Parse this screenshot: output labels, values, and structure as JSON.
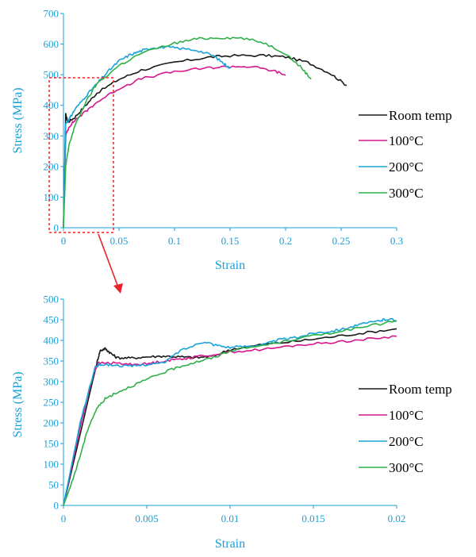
{
  "chart_data": [
    {
      "type": "line",
      "xlabel": "Strain",
      "ylabel": "Stress (MPa)",
      "xlim": [
        0,
        0.3
      ],
      "ylim": [
        0,
        700
      ],
      "xticks": [
        "0",
        "0.05",
        "0.1",
        "0.15",
        "0.2",
        "0.25",
        "0.3"
      ],
      "yticks": [
        "0",
        "100",
        "200",
        "300",
        "400",
        "500",
        "600",
        "700"
      ],
      "legend_position": "right",
      "series": [
        {
          "name": "Room temp",
          "color": "#1a1a1a",
          "points": [
            [
              0,
              0
            ],
            [
              0.002,
              370
            ],
            [
              0.004,
              345
            ],
            [
              0.01,
              360
            ],
            [
              0.02,
              400
            ],
            [
              0.03,
              440
            ],
            [
              0.05,
              485
            ],
            [
              0.07,
              515
            ],
            [
              0.1,
              540
            ],
            [
              0.13,
              557
            ],
            [
              0.15,
              562
            ],
            [
              0.18,
              563
            ],
            [
              0.2,
              558
            ],
            [
              0.22,
              540
            ],
            [
              0.24,
              505
            ],
            [
              0.255,
              465
            ]
          ]
        },
        {
          "name": "100°C",
          "color": "#d6168c",
          "points": [
            [
              0,
              0
            ],
            [
              0.002,
              300
            ],
            [
              0.005,
              330
            ],
            [
              0.01,
              350
            ],
            [
              0.02,
              380
            ],
            [
              0.03,
              410
            ],
            [
              0.05,
              455
            ],
            [
              0.07,
              487
            ],
            [
              0.1,
              510
            ],
            [
              0.13,
              522
            ],
            [
              0.15,
              527
            ],
            [
              0.17,
              526
            ],
            [
              0.19,
              512
            ],
            [
              0.2,
              498
            ]
          ]
        },
        {
          "name": "200°C",
          "color": "#1aa3d9",
          "points": [
            [
              0,
              0
            ],
            [
              0.002,
              340
            ],
            [
              0.006,
              360
            ],
            [
              0.01,
              385
            ],
            [
              0.02,
              430
            ],
            [
              0.03,
              470
            ],
            [
              0.04,
              510
            ],
            [
              0.05,
              545
            ],
            [
              0.06,
              565
            ],
            [
              0.07,
              578
            ],
            [
              0.08,
              588
            ],
            [
              0.09,
              590
            ],
            [
              0.1,
              588
            ],
            [
              0.12,
              580
            ],
            [
              0.135,
              562
            ],
            [
              0.145,
              535
            ],
            [
              0.15,
              520
            ]
          ]
        },
        {
          "name": "300°C",
          "color": "#2fb04a",
          "points": [
            [
              0,
              0
            ],
            [
              0.002,
              200
            ],
            [
              0.005,
              270
            ],
            [
              0.01,
              330
            ],
            [
              0.02,
              410
            ],
            [
              0.03,
              470
            ],
            [
              0.05,
              530
            ],
            [
              0.07,
              570
            ],
            [
              0.1,
              603
            ],
            [
              0.12,
              617
            ],
            [
              0.14,
              621
            ],
            [
              0.16,
              620
            ],
            [
              0.18,
              605
            ],
            [
              0.2,
              570
            ],
            [
              0.215,
              520
            ],
            [
              0.223,
              485
            ]
          ]
        }
      ]
    },
    {
      "type": "line",
      "xlabel": "Strain",
      "ylabel": "Stress (MPa)",
      "xlim": [
        0,
        0.02
      ],
      "ylim": [
        0,
        500
      ],
      "xticks": [
        "0",
        "0.005",
        "0.01",
        "0.015",
        "0.02"
      ],
      "yticks": [
        "0",
        "50",
        "100",
        "150",
        "200",
        "250",
        "300",
        "350",
        "400",
        "450",
        "500"
      ],
      "legend_position": "right",
      "series": [
        {
          "name": "Room temp",
          "color": "#1a1a1a",
          "points": [
            [
              0,
              0
            ],
            [
              0.002,
              345
            ],
            [
              0.0022,
              375
            ],
            [
              0.0025,
              380
            ],
            [
              0.0028,
              370
            ],
            [
              0.0032,
              358
            ],
            [
              0.004,
              357
            ],
            [
              0.005,
              360
            ],
            [
              0.006,
              362
            ],
            [
              0.007,
              360
            ],
            [
              0.008,
              358
            ],
            [
              0.009,
              362
            ],
            [
              0.01,
              378
            ],
            [
              0.012,
              390
            ],
            [
              0.014,
              398
            ],
            [
              0.016,
              408
            ],
            [
              0.018,
              418
            ],
            [
              0.02,
              428
            ]
          ]
        },
        {
          "name": "100°C",
          "color": "#d6168c",
          "points": [
            [
              0,
              0
            ],
            [
              0.001,
              190
            ],
            [
              0.0018,
              320
            ],
            [
              0.0021,
              345
            ],
            [
              0.003,
              345
            ],
            [
              0.004,
              342
            ],
            [
              0.005,
              343
            ],
            [
              0.006,
              350
            ],
            [
              0.007,
              355
            ],
            [
              0.008,
              360
            ],
            [
              0.01,
              372
            ],
            [
              0.012,
              378
            ],
            [
              0.014,
              388
            ],
            [
              0.016,
              395
            ],
            [
              0.018,
              402
            ],
            [
              0.02,
              410
            ]
          ]
        },
        {
          "name": "200°C",
          "color": "#1aa3d9",
          "points": [
            [
              0,
              0
            ],
            [
              0.001,
              200
            ],
            [
              0.0019,
              335
            ],
            [
              0.0022,
              342
            ],
            [
              0.003,
              340
            ],
            [
              0.004,
              337
            ],
            [
              0.005,
              342
            ],
            [
              0.006,
              345
            ],
            [
              0.007,
              375
            ],
            [
              0.0085,
              398
            ],
            [
              0.009,
              390
            ],
            [
              0.01,
              383
            ],
            [
              0.011,
              386
            ],
            [
              0.012,
              390
            ],
            [
              0.013,
              402
            ],
            [
              0.014,
              407
            ],
            [
              0.015,
              418
            ],
            [
              0.016,
              422
            ],
            [
              0.017,
              430
            ],
            [
              0.018,
              440
            ],
            [
              0.019,
              448
            ],
            [
              0.0195,
              452
            ],
            [
              0.02,
              448
            ]
          ]
        },
        {
          "name": "300°C",
          "color": "#2fb04a",
          "points": [
            [
              0,
              0
            ],
            [
              0.0005,
              55
            ],
            [
              0.001,
              120
            ],
            [
              0.0015,
              190
            ],
            [
              0.002,
              235
            ],
            [
              0.0025,
              258
            ],
            [
              0.003,
              270
            ],
            [
              0.004,
              288
            ],
            [
              0.005,
              305
            ],
            [
              0.006,
              322
            ],
            [
              0.007,
              337
            ],
            [
              0.008,
              348
            ],
            [
              0.009,
              358
            ],
            [
              0.01,
              375
            ],
            [
              0.012,
              388
            ],
            [
              0.014,
              404
            ],
            [
              0.016,
              418
            ],
            [
              0.018,
              432
            ],
            [
              0.02,
              448
            ]
          ]
        }
      ]
    }
  ]
}
